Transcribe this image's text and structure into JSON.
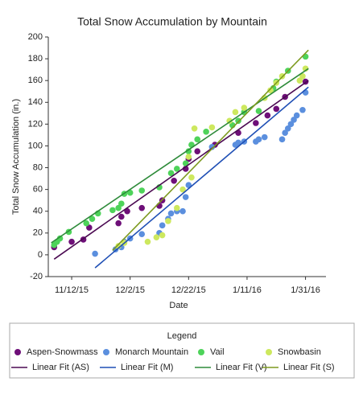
{
  "chart_data": {
    "type": "scatter",
    "title": "Total Snow Accumulation by Mountain",
    "x_label": "Date",
    "y_label": "Total Snow Accumulation (in.)",
    "legend_title": "Legend",
    "xlim": [
      "2015-11-04",
      "2016-02-07"
    ],
    "ylim": [
      -20,
      200
    ],
    "xticks": [
      {
        "value": "2015-11-12",
        "label": "11/12/15"
      },
      {
        "value": "2015-12-02",
        "label": "12/2/15"
      },
      {
        "value": "2015-12-22",
        "label": "12/22/15"
      },
      {
        "value": "2016-01-11",
        "label": "1/11/16"
      },
      {
        "value": "2016-01-31",
        "label": "1/31/16"
      }
    ],
    "yticks": [
      -20,
      0,
      20,
      40,
      60,
      80,
      100,
      120,
      140,
      160,
      180,
      200
    ],
    "series": [
      {
        "name": "Aspen-Snowmass",
        "type": "scatter",
        "color": "#6e0f78",
        "x": [
          "2015-11-06",
          "2015-11-12",
          "2015-11-16",
          "2015-11-18",
          "2015-11-28",
          "2015-11-29",
          "2015-12-01",
          "2015-12-06",
          "2015-12-12",
          "2015-12-13",
          "2015-12-17",
          "2015-12-21",
          "2015-12-22",
          "2015-12-25",
          "2015-12-31",
          "2016-01-08",
          "2016-01-14",
          "2016-01-18",
          "2016-01-21",
          "2016-01-24",
          "2016-01-31"
        ],
        "values": [
          7,
          12,
          14,
          25,
          29,
          35,
          40,
          43,
          45,
          50,
          68,
          79,
          88,
          95,
          101,
          112,
          121,
          128,
          134,
          145,
          159
        ]
      },
      {
        "name": "Monarch Mountain",
        "type": "scatter",
        "color": "#5b8fde",
        "x": [
          "2015-11-20",
          "2015-11-27",
          "2015-11-29",
          "2015-11-30",
          "2015-12-02",
          "2015-12-06",
          "2015-12-12",
          "2015-12-13",
          "2015-12-15",
          "2015-12-16",
          "2015-12-18",
          "2015-12-20",
          "2015-12-21",
          "2015-12-22",
          "2015-12-30",
          "2016-01-07",
          "2016-01-08",
          "2016-01-10",
          "2016-01-14",
          "2016-01-15",
          "2016-01-17",
          "2016-01-23",
          "2016-01-24",
          "2016-01-25",
          "2016-01-26",
          "2016-01-27",
          "2016-01-28",
          "2016-01-30",
          "2016-01-31"
        ],
        "values": [
          1,
          5,
          7,
          12,
          15,
          19,
          20,
          27,
          33,
          38,
          40,
          40,
          53,
          64,
          99,
          101,
          103,
          104,
          104,
          106,
          108,
          106,
          112,
          116,
          120,
          124,
          128,
          133,
          149
        ]
      },
      {
        "name": "Vail",
        "type": "scatter",
        "color": "#4ed35a",
        "x": [
          "2015-11-06",
          "2015-11-07",
          "2015-11-08",
          "2015-11-11",
          "2015-11-17",
          "2015-11-19",
          "2015-11-21",
          "2015-11-26",
          "2015-11-28",
          "2015-11-29",
          "2015-11-30",
          "2015-12-02",
          "2015-12-06",
          "2015-12-12",
          "2015-12-16",
          "2015-12-18",
          "2015-12-21",
          "2015-12-22",
          "2015-12-23",
          "2015-12-25",
          "2015-12-28",
          "2016-01-06",
          "2016-01-08",
          "2016-01-10",
          "2016-01-15",
          "2016-01-20",
          "2016-01-21",
          "2016-01-25",
          "2016-01-31"
        ],
        "values": [
          9,
          12,
          15,
          21,
          29,
          33,
          38,
          41,
          43,
          47,
          56,
          57,
          59,
          62,
          75,
          79,
          84,
          95,
          101,
          106,
          113,
          119,
          123,
          131,
          132,
          153,
          159,
          169,
          182
        ]
      },
      {
        "name": "Snowbasin",
        "type": "scatter",
        "color": "#cde85e",
        "x": [
          "2015-11-28",
          "2015-11-30",
          "2015-12-08",
          "2015-12-11",
          "2015-12-13",
          "2015-12-15",
          "2015-12-18",
          "2015-12-20",
          "2015-12-23",
          "2015-12-22",
          "2015-12-24",
          "2015-12-30",
          "2016-01-05",
          "2016-01-07",
          "2016-01-10",
          "2016-01-17",
          "2016-01-19",
          "2016-01-21",
          "2016-01-23",
          "2016-01-29",
          "2016-01-30",
          "2016-01-31"
        ],
        "values": [
          8,
          11,
          12,
          16,
          18,
          31,
          43,
          60,
          71,
          90,
          116,
          117,
          123,
          131,
          135,
          144,
          151,
          158,
          164,
          160,
          164,
          171
        ]
      },
      {
        "name": "Linear Fit (AS)",
        "type": "line",
        "color": "#4b0a52",
        "x": [
          "2015-11-06",
          "2016-02-01"
        ],
        "values": [
          -4,
          160
        ]
      },
      {
        "name": "Linear Fit (M)",
        "type": "line",
        "color": "#1f4fb5",
        "x": [
          "2015-11-20",
          "2016-02-01"
        ],
        "values": [
          -12,
          154
        ]
      },
      {
        "name": "Linear Fit (V)",
        "type": "line",
        "color": "#2e8b3a",
        "x": [
          "2015-11-05",
          "2016-02-01"
        ],
        "values": [
          11,
          171
        ]
      },
      {
        "name": "Linear Fit (S)",
        "type": "line",
        "color": "#7d9a1f",
        "x": [
          "2015-11-26",
          "2016-02-01"
        ],
        "values": [
          4,
          188
        ]
      }
    ]
  }
}
